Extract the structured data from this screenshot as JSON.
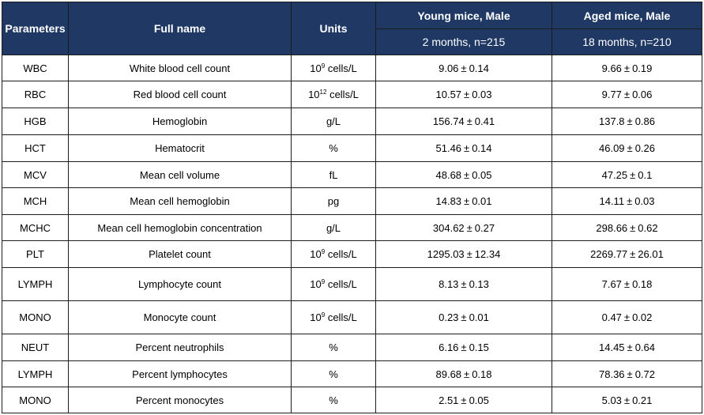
{
  "header": {
    "parameters": "Parameters",
    "full_name": "Full name",
    "units": "Units",
    "young": "Young mice, Male",
    "young_sub": "2 months, n=215",
    "aged": "Aged mice, Male",
    "aged_sub": "18 months, n=210"
  },
  "rows": [
    {
      "param": "WBC",
      "name": "White blood cell count",
      "unit_base": "10",
      "unit_exp": "9",
      "unit_rest": " cells/L",
      "young_mean": "9.06",
      "young_sem": "0.14",
      "aged_mean": "9.66",
      "aged_sem": "0.19"
    },
    {
      "param": "RBC",
      "name": "Red blood cell count",
      "unit_base": "10",
      "unit_exp": "12",
      "unit_rest": " cells/L",
      "young_mean": "10.57",
      "young_sem": "0.03",
      "aged_mean": "9.77",
      "aged_sem": "0.06"
    },
    {
      "param": "HGB",
      "name": "Hemoglobin",
      "unit_base": "g/L",
      "unit_exp": "",
      "unit_rest": "",
      "young_mean": "156.74",
      "young_sem": "0.41",
      "aged_mean": "137.8",
      "aged_sem": "0.86"
    },
    {
      "param": "HCT",
      "name": "Hematocrit",
      "unit_base": "%",
      "unit_exp": "",
      "unit_rest": "",
      "young_mean": "51.46",
      "young_sem": "0.14",
      "aged_mean": "46.09",
      "aged_sem": "0.26"
    },
    {
      "param": "MCV",
      "name": "Mean cell volume",
      "unit_base": "fL",
      "unit_exp": "",
      "unit_rest": "",
      "young_mean": "48.68",
      "young_sem": "0.05",
      "aged_mean": "47.25",
      "aged_sem": "0.1"
    },
    {
      "param": "MCH",
      "name": "Mean cell hemoglobin",
      "unit_base": "pg",
      "unit_exp": "",
      "unit_rest": "",
      "young_mean": "14.83",
      "young_sem": "0.01",
      "aged_mean": "14.11",
      "aged_sem": "0.03"
    },
    {
      "param": "MCHC",
      "name": "Mean cell hemoglobin concentration",
      "unit_base": "g/L",
      "unit_exp": "",
      "unit_rest": "",
      "young_mean": "304.62",
      "young_sem": "0.27",
      "aged_mean": "298.66",
      "aged_sem": "0.62"
    },
    {
      "param": "PLT",
      "name": "Platelet count",
      "unit_base": "10",
      "unit_exp": "9",
      "unit_rest": " cells/L",
      "young_mean": "1295.03",
      "young_sem": "12.34",
      "aged_mean": "2269.77",
      "aged_sem": "26.01"
    },
    {
      "param": "LYMPH",
      "name": "Lymphocyte count",
      "unit_base": "10",
      "unit_exp": "9",
      "unit_rest": " cells/L",
      "young_mean": "8.13",
      "young_sem": "0.13",
      "aged_mean": "7.67",
      "aged_sem": "0.18"
    },
    {
      "param": "MONO",
      "name": "Monocyte count",
      "unit_base": "10",
      "unit_exp": "9",
      "unit_rest": " cells/L",
      "young_mean": "0.23",
      "young_sem": "0.01",
      "aged_mean": "0.47",
      "aged_sem": "0.02"
    },
    {
      "param": "NEUT",
      "name": "Percent neutrophils",
      "unit_base": "%",
      "unit_exp": "",
      "unit_rest": "",
      "young_mean": "6.16",
      "young_sem": "0.15",
      "aged_mean": "14.45",
      "aged_sem": "0.64"
    },
    {
      "param": "LYMPH",
      "name": "Percent lymphocytes",
      "unit_base": "%",
      "unit_exp": "",
      "unit_rest": "",
      "young_mean": "89.68",
      "young_sem": "0.18",
      "aged_mean": "78.36",
      "aged_sem": "0.72"
    },
    {
      "param": "MONO",
      "name": "Percent monocytes",
      "unit_base": "%",
      "unit_exp": "",
      "unit_rest": "",
      "young_mean": "2.51",
      "young_sem": "0.05",
      "aged_mean": "5.03",
      "aged_sem": "0.21"
    }
  ],
  "pm_symbol": "±",
  "colors": {
    "header_bg": "#1f3864",
    "header_text": "#ffffff",
    "border": "#1c1c1c"
  }
}
